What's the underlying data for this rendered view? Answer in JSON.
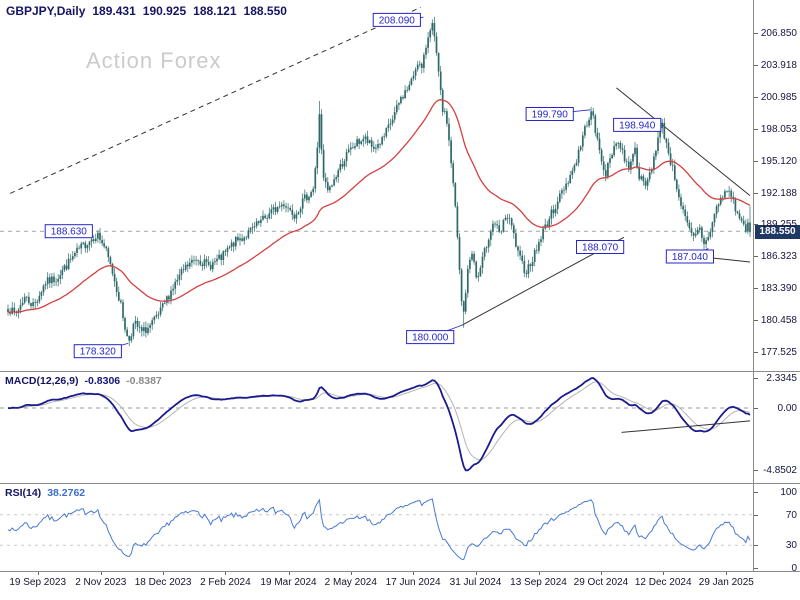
{
  "watermark": "Action Forex",
  "header": {
    "symbol": "GBPJPY,Daily",
    "open": "189.431",
    "high": "190.925",
    "low": "188.121",
    "close": "188.550"
  },
  "chart_data": [
    {
      "name": "price",
      "type": "candlestick",
      "title": "GBPJPY Daily",
      "colors": {
        "candle": "#2e6969",
        "ma": "#d44040",
        "label": "#2626c9",
        "level": "#a0a4ad",
        "trend": "#333333"
      },
      "y_axis": {
        "labels": [
          "206.850",
          "203.918",
          "200.985",
          "198.053",
          "195.120",
          "192.188",
          "189.255",
          "186.323",
          "183.390",
          "180.458",
          "177.525"
        ],
        "top_price": 209.88,
        "bottom_price": 175.78
      },
      "current_price": {
        "text": "188.550",
        "value": 188.55
      },
      "x_axis": {
        "ticks": [
          {
            "label": "19 Sep 2023",
            "t": 0.04
          },
          {
            "label": "2 Nov 2023",
            "t": 0.125
          },
          {
            "label": "18 Dec 2023",
            "t": 0.209
          },
          {
            "label": "2 Feb 2024",
            "t": 0.293
          },
          {
            "label": "19 Mar 2024",
            "t": 0.378
          },
          {
            "label": "2 May 2024",
            "t": 0.462
          },
          {
            "label": "17 Jun 2024",
            "t": 0.546
          },
          {
            "label": "31 Jul 2024",
            "t": 0.63
          },
          {
            "label": "13 Sep 2024",
            "t": 0.715
          },
          {
            "label": "29 Oct 2024",
            "t": 0.799
          },
          {
            "label": "12 Dec 2024",
            "t": 0.883
          },
          {
            "label": "29 Jan 2025",
            "t": 0.968
          }
        ]
      },
      "candles": {
        "count": 356,
        "seed": 7,
        "noise": 0.42,
        "wick": 0.5,
        "anchors": [
          [
            0.0,
            181.6
          ],
          [
            0.01,
            180.9
          ],
          [
            0.022,
            182.6
          ],
          [
            0.035,
            181.8
          ],
          [
            0.05,
            183.9
          ],
          [
            0.065,
            184.3
          ],
          [
            0.08,
            185.6
          ],
          [
            0.095,
            186.9
          ],
          [
            0.11,
            187.8
          ],
          [
            0.12,
            188.4
          ],
          [
            0.13,
            187.2
          ],
          [
            0.142,
            184.6
          ],
          [
            0.152,
            181.8
          ],
          [
            0.162,
            178.4
          ],
          [
            0.17,
            180.2
          ],
          [
            0.18,
            179.3
          ],
          [
            0.192,
            179.9
          ],
          [
            0.204,
            181.0
          ],
          [
            0.22,
            183.2
          ],
          [
            0.238,
            185.2
          ],
          [
            0.255,
            186.2
          ],
          [
            0.27,
            185.4
          ],
          [
            0.288,
            186.2
          ],
          [
            0.305,
            187.6
          ],
          [
            0.32,
            188.2
          ],
          [
            0.338,
            189.3
          ],
          [
            0.355,
            190.4
          ],
          [
            0.372,
            191.2
          ],
          [
            0.386,
            190.2
          ],
          [
            0.4,
            191.6
          ],
          [
            0.412,
            192.6
          ],
          [
            0.417,
            196.5
          ],
          [
            0.42,
            199.8
          ],
          [
            0.424,
            193.6
          ],
          [
            0.432,
            192.2
          ],
          [
            0.445,
            194.2
          ],
          [
            0.456,
            195.6
          ],
          [
            0.468,
            196.6
          ],
          [
            0.48,
            197.2
          ],
          [
            0.492,
            196.2
          ],
          [
            0.505,
            197.0
          ],
          [
            0.518,
            198.9
          ],
          [
            0.53,
            200.9
          ],
          [
            0.543,
            202.2
          ],
          [
            0.552,
            204.3
          ],
          [
            0.558,
            203.4
          ],
          [
            0.565,
            206.3
          ],
          [
            0.571,
            208.0
          ],
          [
            0.578,
            204.5
          ],
          [
            0.585,
            200.0
          ],
          [
            0.592,
            198.6
          ],
          [
            0.598,
            194.4
          ],
          [
            0.604,
            189.8
          ],
          [
            0.609,
            184.3
          ],
          [
            0.613,
            180.4
          ],
          [
            0.619,
            184.6
          ],
          [
            0.625,
            187.0
          ],
          [
            0.632,
            184.0
          ],
          [
            0.64,
            186.1
          ],
          [
            0.648,
            188.2
          ],
          [
            0.655,
            189.6
          ],
          [
            0.663,
            188.1
          ],
          [
            0.671,
            190.2
          ],
          [
            0.679,
            189.0
          ],
          [
            0.688,
            186.3
          ],
          [
            0.698,
            184.9
          ],
          [
            0.711,
            186.7
          ],
          [
            0.722,
            188.8
          ],
          [
            0.733,
            190.3
          ],
          [
            0.744,
            191.9
          ],
          [
            0.755,
            193.4
          ],
          [
            0.765,
            194.9
          ],
          [
            0.774,
            197.1
          ],
          [
            0.781,
            198.9
          ],
          [
            0.787,
            199.6
          ],
          [
            0.793,
            197.3
          ],
          [
            0.799,
            195.4
          ],
          [
            0.806,
            193.9
          ],
          [
            0.813,
            195.6
          ],
          [
            0.82,
            197.1
          ],
          [
            0.828,
            195.9
          ],
          [
            0.836,
            194.4
          ],
          [
            0.844,
            196.4
          ],
          [
            0.851,
            193.7
          ],
          [
            0.858,
            192.6
          ],
          [
            0.866,
            194.1
          ],
          [
            0.874,
            196.6
          ],
          [
            0.881,
            198.5
          ],
          [
            0.887,
            196.8
          ],
          [
            0.894,
            194.8
          ],
          [
            0.901,
            192.9
          ],
          [
            0.908,
            190.8
          ],
          [
            0.916,
            189.0
          ],
          [
            0.924,
            187.9
          ],
          [
            0.932,
            188.9
          ],
          [
            0.939,
            187.3
          ],
          [
            0.947,
            188.9
          ],
          [
            0.955,
            190.8
          ],
          [
            0.964,
            192.0
          ],
          [
            0.972,
            192.4
          ],
          [
            0.979,
            191.0
          ],
          [
            0.985,
            189.9
          ],
          [
            0.991,
            189.2
          ],
          [
            1.0,
            188.55
          ]
        ],
        "spikes": [
          {
            "t": 0.42,
            "high": 200.6
          },
          {
            "t": 0.613,
            "low": 179.75
          },
          {
            "t": 0.162,
            "low": 178.05
          }
        ]
      },
      "last_candle": {
        "open": 189.431,
        "high": 190.925,
        "low": 188.121,
        "close": 188.55
      },
      "ma_period": 45,
      "level_line": {
        "price": 188.63
      },
      "trendlines": [
        {
          "t1": 0.003,
          "p1": 192.1,
          "t2": 0.556,
          "p2": 209.2,
          "dash": true
        },
        {
          "t1": 0.82,
          "p1": 201.8,
          "t2": 1.0,
          "p2": 191.9,
          "dash": false
        },
        {
          "t1": 0.612,
          "p1": 180.0,
          "t2": 0.83,
          "p2": 188.07,
          "dash": false
        },
        {
          "t1": 0.918,
          "p1": 186.4,
          "t2": 1.0,
          "p2": 185.8,
          "dash": false
        }
      ],
      "price_labels": [
        {
          "value": "208.090",
          "t": 0.524,
          "price": 208.05,
          "target": {
            "t": 0.56,
            "price": 208.3
          }
        },
        {
          "value": "199.790",
          "t": 0.73,
          "price": 199.4,
          "target": {
            "t": 0.785,
            "price": 199.79
          }
        },
        {
          "value": "198.940",
          "t": 0.848,
          "price": 198.4,
          "target": {
            "t": 0.878,
            "price": 198.94
          }
        },
        {
          "value": "188.630",
          "t": 0.082,
          "price": 188.63,
          "target": null
        },
        {
          "value": "188.070",
          "t": 0.798,
          "price": 187.18,
          "target": null
        },
        {
          "value": "187.040",
          "t": 0.919,
          "price": 186.3,
          "target": {
            "t": 0.944,
            "price": 187.04
          }
        },
        {
          "value": "180.000",
          "t": 0.569,
          "price": 178.9,
          "target": {
            "t": 0.612,
            "price": 180.0
          }
        },
        {
          "value": "178.320",
          "t": 0.121,
          "price": 177.6,
          "target": {
            "t": 0.162,
            "price": 178.32
          }
        }
      ]
    },
    {
      "name": "macd",
      "type": "line",
      "label": "MACD(12,26,9)",
      "value": "-0.8306",
      "signal_value": "-0.8387",
      "params": {
        "fast": 12,
        "slow": 26,
        "signal": 9
      },
      "colors": {
        "macd": "#1a1a8e",
        "signal": "#b5b5b5",
        "zero": "#9b9b9b",
        "trend": "#333333"
      },
      "y_axis": {
        "labels": [
          {
            "text": "2.3345",
            "v": 2.3345
          },
          {
            "text": "0.00",
            "v": 0
          },
          {
            "text": "-4.8502",
            "v": -4.8502
          }
        ],
        "max": 2.3345,
        "min": -4.8502
      },
      "trendline": {
        "t1": 0.827,
        "v1": -1.9,
        "t2": 1.0,
        "v2": -1.0
      }
    },
    {
      "name": "rsi",
      "type": "line",
      "label": "RSI(14)",
      "value": "38.2762",
      "period": 14,
      "color": "#4a7ad4",
      "levels": [
        70,
        30
      ],
      "y_axis": {
        "labels": [
          {
            "text": "100",
            "v": 100
          },
          {
            "text": "70",
            "v": 70
          },
          {
            "text": "30",
            "v": 30
          },
          {
            "text": "0",
            "v": 0
          }
        ]
      }
    }
  ]
}
